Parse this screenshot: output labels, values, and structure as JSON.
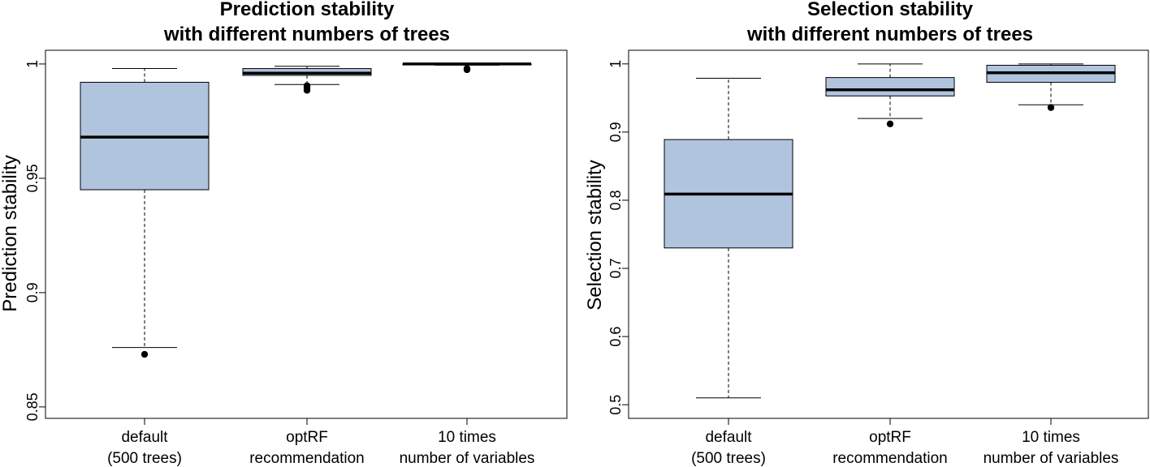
{
  "chart_data": [
    {
      "type": "boxplot",
      "title": [
        "Prediction stability",
        "with different numbers of trees"
      ],
      "xlabel": "",
      "ylabel": "Prediction stability",
      "ylim": [
        0.845,
        1.006
      ],
      "yticks": [
        0.85,
        0.9,
        0.95,
        1
      ],
      "ytick_labels": [
        "0.85",
        "0.9",
        "0.95",
        "1"
      ],
      "box_color": "#b0c4de",
      "grid": false,
      "categories": [
        [
          "default",
          "(500 trees)"
        ],
        [
          "optRF",
          "recommendation"
        ],
        [
          "10 times",
          "number of variables"
        ]
      ],
      "boxes": [
        {
          "whisker_low": 0.876,
          "q1": 0.945,
          "median": 0.968,
          "q3": 0.992,
          "whisker_high": 0.998,
          "outliers": [
            0.873
          ]
        },
        {
          "whisker_low": 0.991,
          "q1": 0.995,
          "median": 0.996,
          "q3": 0.998,
          "whisker_high": 0.999,
          "outliers": [
            0.9885,
            0.9895,
            0.9905
          ]
        },
        {
          "whisker_low": 0.9995,
          "q1": 0.9998,
          "median": 1.0,
          "q3": 1.0,
          "whisker_high": 1.0,
          "outliers": [
            0.9975,
            0.998
          ]
        }
      ]
    },
    {
      "type": "boxplot",
      "title": [
        "Selection stability",
        "with different numbers of trees"
      ],
      "xlabel": "",
      "ylabel": "Selection stability",
      "ylim": [
        0.48,
        1.02
      ],
      "yticks": [
        0.5,
        0.6,
        0.7,
        0.8,
        0.9,
        1
      ],
      "ytick_labels": [
        "0.5",
        "0.6",
        "0.7",
        "0.8",
        "0.9",
        "1"
      ],
      "box_color": "#b0c4de",
      "grid": false,
      "categories": [
        [
          "default",
          "(500 trees)"
        ],
        [
          "optRF",
          "recommendation"
        ],
        [
          "10 times",
          "number of variables"
        ]
      ],
      "boxes": [
        {
          "whisker_low": 0.51,
          "q1": 0.73,
          "median": 0.809,
          "q3": 0.889,
          "whisker_high": 0.979,
          "outliers": []
        },
        {
          "whisker_low": 0.92,
          "q1": 0.953,
          "median": 0.962,
          "q3": 0.98,
          "whisker_high": 1.0,
          "outliers": [
            0.912
          ]
        },
        {
          "whisker_low": 0.94,
          "q1": 0.973,
          "median": 0.987,
          "q3": 0.998,
          "whisker_high": 1.0,
          "outliers": [
            0.936
          ]
        }
      ]
    }
  ]
}
